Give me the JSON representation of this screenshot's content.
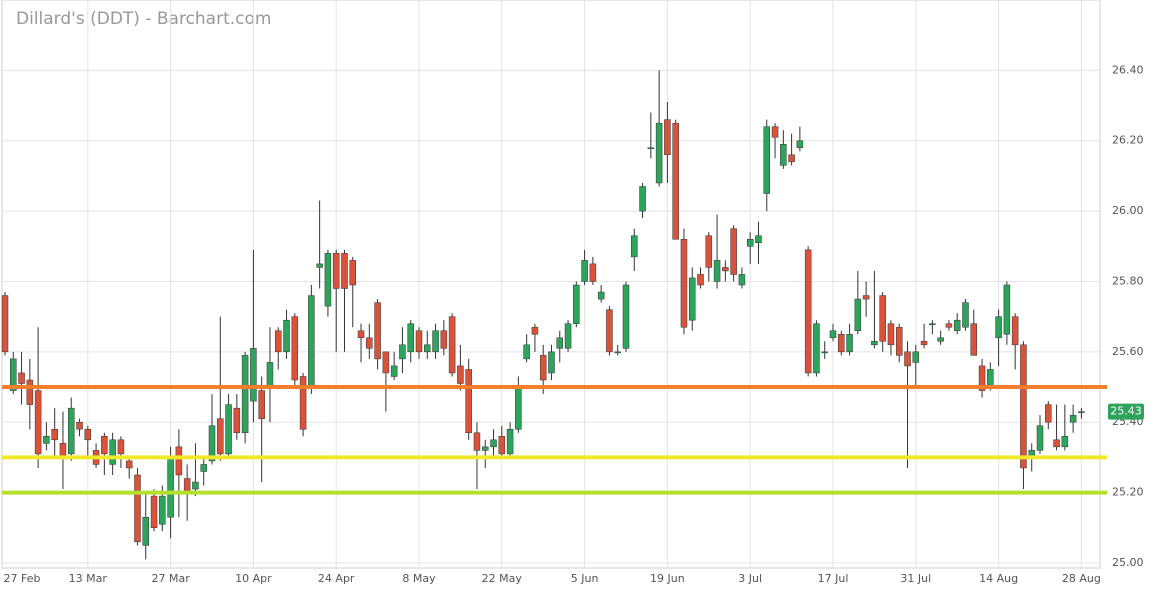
{
  "chart_data": {
    "type": "candlestick",
    "title": "Dillard's (DDT) - Barchart.com",
    "categories": [
      "27 Feb",
      null,
      null,
      null,
      null,
      null,
      null,
      null,
      null,
      null,
      "13 Mar",
      null,
      null,
      null,
      null,
      null,
      null,
      null,
      null,
      null,
      "27 Mar",
      null,
      null,
      null,
      null,
      null,
      null,
      null,
      null,
      null,
      "10 Apr",
      null,
      null,
      null,
      null,
      null,
      null,
      null,
      null,
      null,
      "24 Apr",
      null,
      null,
      null,
      null,
      null,
      null,
      null,
      null,
      null,
      "8 May",
      null,
      null,
      null,
      null,
      null,
      null,
      null,
      null,
      null,
      "22 May",
      null,
      null,
      null,
      null,
      null,
      null,
      null,
      null,
      null,
      "5 Jun",
      null,
      null,
      null,
      null,
      null,
      null,
      null,
      null,
      null,
      "19 Jun",
      null,
      null,
      null,
      null,
      null,
      null,
      null,
      null,
      null,
      "3 Jul",
      null,
      null,
      null,
      null,
      null,
      null,
      null,
      null,
      null,
      "17 Jul",
      null,
      null,
      null,
      null,
      null,
      null,
      null,
      null,
      null,
      "31 Jul",
      null,
      null,
      null,
      null,
      null,
      null,
      null,
      null,
      null,
      "14 Aug",
      null,
      null,
      null,
      null,
      null,
      null,
      null,
      null,
      null,
      "28 Aug"
    ],
    "open": [
      25.76,
      25.49,
      25.54,
      25.52,
      25.49,
      25.34,
      25.38,
      25.34,
      25.31,
      25.4,
      25.38,
      25.32,
      25.36,
      25.28,
      25.35,
      25.29,
      25.25,
      25.05,
      25.19,
      25.11,
      25.13,
      25.33,
      25.24,
      25.21,
      25.26,
      25.29,
      25.41,
      25.31,
      25.44,
      25.37,
      25.46,
      25.49,
      25.5,
      25.66,
      25.6,
      25.7,
      25.53,
      25.5,
      25.84,
      25.73,
      25.88,
      25.88,
      25.86,
      25.66,
      25.64,
      25.74,
      25.6,
      25.53,
      25.58,
      25.6,
      25.66,
      25.6,
      25.6,
      25.66,
      25.7,
      25.56,
      25.55,
      25.37,
      25.32,
      25.33,
      25.36,
      25.31,
      25.38,
      25.58,
      25.67,
      25.59,
      25.54,
      25.61,
      25.61,
      25.68,
      25.8,
      25.85,
      25.75,
      25.72,
      25.6,
      25.61,
      25.87,
      26.0,
      26.18,
      26.08,
      26.26,
      26.25,
      25.92,
      25.69,
      25.82,
      25.93,
      25.8,
      25.84,
      25.95,
      25.79,
      25.9,
      25.91,
      26.05,
      26.24,
      26.13,
      26.16,
      26.18,
      25.89,
      25.54,
      25.6,
      25.64,
      25.65,
      25.6,
      25.66,
      25.76,
      25.62,
      25.76,
      25.68,
      25.67,
      25.6,
      25.57,
      25.63,
      25.68,
      25.63,
      25.68,
      25.66,
      25.67,
      25.68,
      25.56,
      25.5,
      25.64,
      25.65,
      25.7,
      25.62,
      25.3,
      25.32,
      25.45,
      25.35,
      25.33,
      25.4,
      25.43
    ],
    "high": [
      25.77,
      25.6,
      25.6,
      25.58,
      25.67,
      25.4,
      25.44,
      25.43,
      25.47,
      25.41,
      25.39,
      25.34,
      25.37,
      25.37,
      25.36,
      25.3,
      25.27,
      25.2,
      25.21,
      25.22,
      25.33,
      25.38,
      25.28,
      25.34,
      25.3,
      25.48,
      25.7,
      25.48,
      25.48,
      25.6,
      25.89,
      25.53,
      25.67,
      25.67,
      25.72,
      25.71,
      25.54,
      25.79,
      26.03,
      25.89,
      25.89,
      25.89,
      25.87,
      25.68,
      25.68,
      25.75,
      25.6,
      25.6,
      25.67,
      25.69,
      25.67,
      25.66,
      25.68,
      25.69,
      25.71,
      25.62,
      25.58,
      25.4,
      25.35,
      25.38,
      25.39,
      25.4,
      25.53,
      25.65,
      25.68,
      25.62,
      25.62,
      25.66,
      25.69,
      25.8,
      25.89,
      25.87,
      25.79,
      25.73,
      25.62,
      25.8,
      25.95,
      26.08,
      26.28,
      26.4,
      26.31,
      26.26,
      25.95,
      25.84,
      25.84,
      25.94,
      25.99,
      25.86,
      25.96,
      25.84,
      25.94,
      25.97,
      26.26,
      26.25,
      26.23,
      26.22,
      26.24,
      25.9,
      25.69,
      25.63,
      25.68,
      25.66,
      25.68,
      25.83,
      25.8,
      25.83,
      25.77,
      25.69,
      25.68,
      25.63,
      25.62,
      25.68,
      25.69,
      25.66,
      25.69,
      25.71,
      25.75,
      25.72,
      25.58,
      25.57,
      25.72,
      25.8,
      25.71,
      25.63,
      25.34,
      25.42,
      25.46,
      25.45,
      25.45,
      25.45,
      25.44
    ],
    "low": [
      25.59,
      25.48,
      25.45,
      25.38,
      25.27,
      25.32,
      25.3,
      25.21,
      25.29,
      25.36,
      25.3,
      25.27,
      25.25,
      25.25,
      25.27,
      25.24,
      25.05,
      25.01,
      25.09,
      25.09,
      25.07,
      25.13,
      25.12,
      25.19,
      25.22,
      25.28,
      25.29,
      25.3,
      25.35,
      25.34,
      25.4,
      25.23,
      25.4,
      25.55,
      25.58,
      25.5,
      25.36,
      25.48,
      25.78,
      25.7,
      25.6,
      25.6,
      25.67,
      25.57,
      25.58,
      25.55,
      25.43,
      25.52,
      25.54,
      25.57,
      25.58,
      25.58,
      25.58,
      25.59,
      25.53,
      25.49,
      25.35,
      25.21,
      25.27,
      25.3,
      25.3,
      25.3,
      25.37,
      25.57,
      25.6,
      25.48,
      25.52,
      25.57,
      25.6,
      25.67,
      25.79,
      25.79,
      25.74,
      25.59,
      25.59,
      25.6,
      25.83,
      25.98,
      26.15,
      26.07,
      26.08,
      25.92,
      25.65,
      25.66,
      25.78,
      25.8,
      25.78,
      25.8,
      25.8,
      25.78,
      25.85,
      25.85,
      26.0,
      26.15,
      26.12,
      26.13,
      26.17,
      25.53,
      25.53,
      25.58,
      25.63,
      25.59,
      25.59,
      25.65,
      25.7,
      25.61,
      25.6,
      25.59,
      25.57,
      25.27,
      25.5,
      25.61,
      25.65,
      25.62,
      25.66,
      25.65,
      25.66,
      25.59,
      25.47,
      25.49,
      25.56,
      25.62,
      25.55,
      25.21,
      25.26,
      25.31,
      25.38,
      25.32,
      25.32,
      25.37,
      25.41
    ],
    "close": [
      25.6,
      25.58,
      25.51,
      25.45,
      25.31,
      25.36,
      25.35,
      25.3,
      25.44,
      25.38,
      25.35,
      25.28,
      25.31,
      25.35,
      25.31,
      25.27,
      25.06,
      25.13,
      25.1,
      25.19,
      25.3,
      25.25,
      25.2,
      25.23,
      25.28,
      25.39,
      25.31,
      25.45,
      25.37,
      25.59,
      25.61,
      25.41,
      25.57,
      25.6,
      25.69,
      25.52,
      25.38,
      25.76,
      25.85,
      25.88,
      25.78,
      25.78,
      25.79,
      25.64,
      25.61,
      25.58,
      25.54,
      25.56,
      25.62,
      25.68,
      25.6,
      25.62,
      25.66,
      25.61,
      25.54,
      25.51,
      25.37,
      25.32,
      25.33,
      25.35,
      25.31,
      25.38,
      25.5,
      25.62,
      25.65,
      25.52,
      25.6,
      25.64,
      25.68,
      25.79,
      25.86,
      25.8,
      25.77,
      25.6,
      25.6,
      25.79,
      25.93,
      26.07,
      26.18,
      26.25,
      26.16,
      25.92,
      25.67,
      25.81,
      25.79,
      25.84,
      25.86,
      25.83,
      25.82,
      25.82,
      25.92,
      25.93,
      26.24,
      26.21,
      26.19,
      26.14,
      26.2,
      25.54,
      25.68,
      25.6,
      25.66,
      25.6,
      25.65,
      25.75,
      25.75,
      25.63,
      25.63,
      25.62,
      25.59,
      25.56,
      25.6,
      25.62,
      25.68,
      25.64,
      25.67,
      25.69,
      25.74,
      25.59,
      25.49,
      25.55,
      25.7,
      25.79,
      25.62,
      25.27,
      25.32,
      25.39,
      25.4,
      25.33,
      25.36,
      25.42,
      25.43
    ],
    "up_color": "#2ea35b",
    "down_color": "#d9533b",
    "wick_color": "#333333",
    "ylim": [
      24.98,
      26.6
    ],
    "yticks": [
      {
        "value": 25.0,
        "label": "25.00"
      },
      {
        "value": 25.2,
        "label": "25.20"
      },
      {
        "value": 25.4,
        "label": "25.40"
      },
      {
        "value": 25.6,
        "label": "25.60"
      },
      {
        "value": 25.8,
        "label": "25.80"
      },
      {
        "value": 26.0,
        "label": "26.00"
      },
      {
        "value": 26.2,
        "label": "26.20"
      },
      {
        "value": 26.4,
        "label": "26.40"
      }
    ],
    "grid": true,
    "hlines": [
      {
        "value": 25.5,
        "color": "#f47e2a"
      },
      {
        "value": 25.3,
        "color": "#f2e82b"
      },
      {
        "value": 25.2,
        "color": "#b3e02c"
      }
    ],
    "last_price": 25.43,
    "last_price_color": "#2ea35b"
  }
}
